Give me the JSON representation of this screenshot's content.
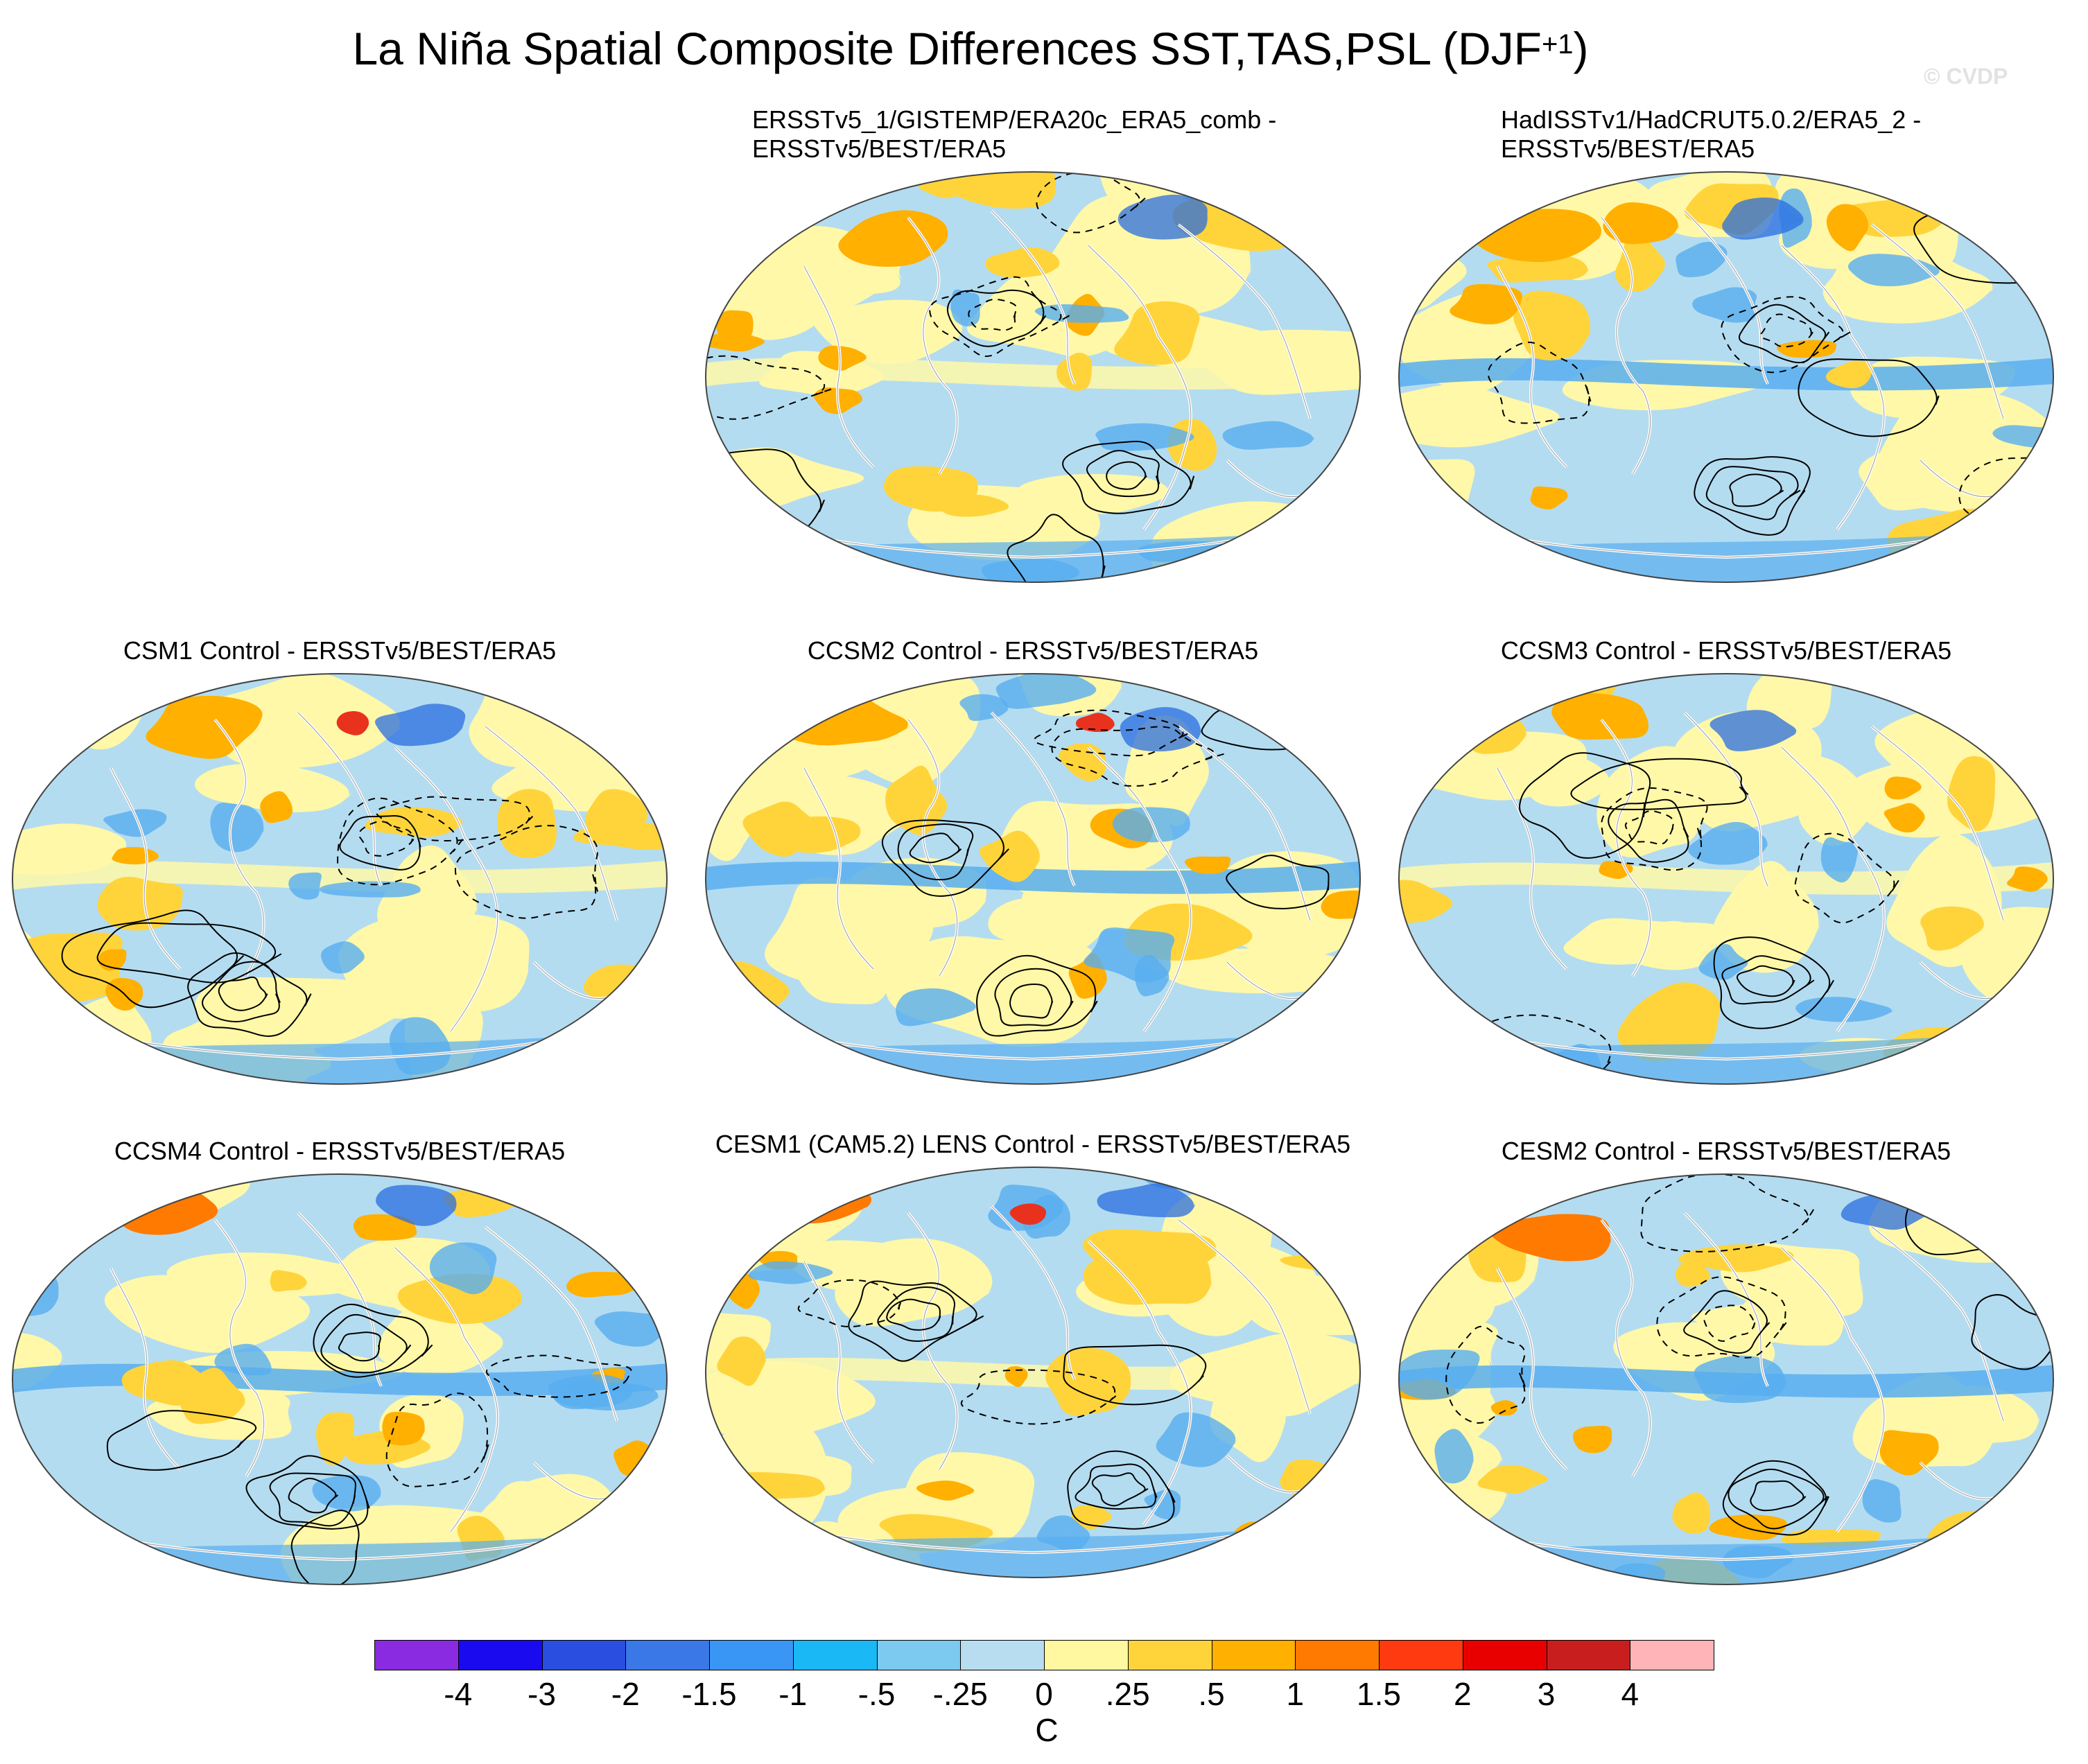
{
  "figure": {
    "title": "La Niña Spatial Composite Differences SST,TAS,PSL (DJF",
    "title_superscript": "+1",
    "title_close": ")",
    "watermark": "© CVDP"
  },
  "palette": {
    "ocean_light_blue": "#b4dcf0",
    "pale_yellow": "#fff8a8",
    "yellow": "#ffd43b",
    "orange": "#ffb000",
    "dark_orange": "#ff7a00",
    "red": "#e8321e",
    "blue": "#58aef0",
    "dark_blue": "#2a6ee0",
    "coast": "#ffffff",
    "contour": "#000000"
  },
  "panels": [
    {
      "id": "obs1",
      "title_lines": [
        "ERSSTv5_1/GISTEMP/ERA20c_ERA5_comb -",
        "ERSSTv5/BEST/ERA5"
      ]
    },
    {
      "id": "obs2",
      "title_lines": [
        "HadISSTv1/HadCRUT5.0.2/ERA5_2 -",
        "ERSSTv5/BEST/ERA5"
      ]
    },
    {
      "id": "csm1",
      "title_lines": [
        "CSM1 Control - ERSSTv5/BEST/ERA5"
      ]
    },
    {
      "id": "ccsm2",
      "title_lines": [
        "CCSM2 Control - ERSSTv5/BEST/ERA5"
      ]
    },
    {
      "id": "ccsm3",
      "title_lines": [
        "CCSM3 Control - ERSSTv5/BEST/ERA5"
      ]
    },
    {
      "id": "ccsm4",
      "title_lines": [
        "CCSM4 Control - ERSSTv5/BEST/ERA5"
      ]
    },
    {
      "id": "cesm1",
      "title_lines": [
        "CESM1 (CAM5.2) LENS Control - ERSSTv5/BEST/ERA5"
      ]
    },
    {
      "id": "cesm2",
      "title_lines": [
        "CESM2 Control - ERSSTv5/BEST/ERA5"
      ]
    }
  ],
  "colorbar": {
    "unit": "C",
    "labels": [
      "-4",
      "-3",
      "-2",
      "-1.5",
      "-1",
      "-.5",
      "-.25",
      "0",
      ".25",
      ".5",
      "1",
      "1.5",
      "2",
      "3",
      "4"
    ],
    "colors": [
      "#8a2be2",
      "#1a0af0",
      "#2a4ee0",
      "#3a78e8",
      "#3a96f5",
      "#1ab8f5",
      "#7ccaf0",
      "#b8dcf0",
      "#fff8a0",
      "#ffd43b",
      "#ffb000",
      "#ff7a00",
      "#ff3a10",
      "#e80000",
      "#c81e1e",
      "#ffb4b8"
    ]
  }
}
